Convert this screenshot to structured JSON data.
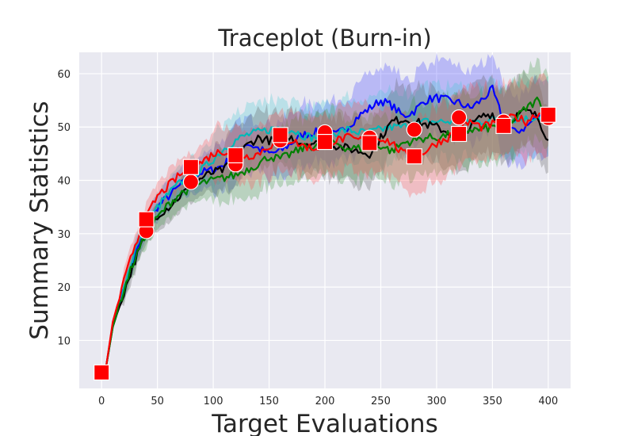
{
  "chart_data": {
    "type": "line",
    "title": "Traceplot (Burn-in)",
    "xlabel": "Target Evaluations",
    "ylabel": "Summary Statistics",
    "xlim": [
      -20,
      420
    ],
    "ylim": [
      1,
      64
    ],
    "xticks": [
      0,
      50,
      100,
      150,
      200,
      250,
      300,
      350,
      400
    ],
    "yticks": [
      10,
      20,
      30,
      40,
      50,
      60
    ],
    "grid": true,
    "background": "#e9e9f1",
    "series": [
      {
        "color": "#0000ff",
        "band_color": "#3c3cff",
        "points": [
          [
            4,
            5
          ],
          [
            10,
            13
          ],
          [
            20,
            20
          ],
          [
            30,
            26
          ],
          [
            40,
            31
          ],
          [
            50,
            35
          ],
          [
            60,
            37
          ],
          [
            70,
            39
          ],
          [
            80,
            40.5
          ],
          [
            90,
            41.5
          ],
          [
            100,
            42
          ],
          [
            110,
            43
          ],
          [
            120,
            45
          ],
          [
            130,
            47
          ],
          [
            140,
            46
          ],
          [
            150,
            45
          ],
          [
            160,
            45.5
          ],
          [
            170,
            47
          ],
          [
            180,
            48.5
          ],
          [
            190,
            49
          ],
          [
            200,
            49
          ],
          [
            210,
            48.5
          ],
          [
            220,
            50
          ],
          [
            230,
            52
          ],
          [
            240,
            53.5
          ],
          [
            250,
            55
          ],
          [
            260,
            54
          ],
          [
            270,
            52
          ],
          [
            280,
            53
          ],
          [
            290,
            55
          ],
          [
            300,
            55.5
          ],
          [
            310,
            55
          ],
          [
            320,
            54.5
          ],
          [
            330,
            53.5
          ],
          [
            340,
            55
          ],
          [
            350,
            57
          ],
          [
            360,
            51
          ],
          [
            370,
            49
          ],
          [
            380,
            50
          ],
          [
            390,
            52
          ],
          [
            400,
            51.5
          ]
        ]
      },
      {
        "color": "#00b8b8",
        "band_color": "#40c8d0",
        "points": [
          [
            4,
            5
          ],
          [
            10,
            13
          ],
          [
            20,
            20
          ],
          [
            30,
            27
          ],
          [
            40,
            31.5
          ],
          [
            50,
            35
          ],
          [
            60,
            37.5
          ],
          [
            70,
            39.5
          ],
          [
            80,
            41
          ],
          [
            90,
            42
          ],
          [
            100,
            44
          ],
          [
            110,
            46
          ],
          [
            120,
            47.5
          ],
          [
            130,
            48.5
          ],
          [
            140,
            49
          ],
          [
            150,
            49.5
          ],
          [
            160,
            50
          ],
          [
            170,
            49.5
          ],
          [
            180,
            48.5
          ],
          [
            190,
            48
          ],
          [
            200,
            48.5
          ],
          [
            210,
            49
          ],
          [
            220,
            49.5
          ],
          [
            230,
            49
          ],
          [
            240,
            49
          ],
          [
            250,
            49.5
          ],
          [
            260,
            50
          ],
          [
            270,
            50
          ],
          [
            280,
            50.5
          ],
          [
            290,
            51
          ],
          [
            300,
            51
          ],
          [
            310,
            51
          ],
          [
            320,
            51
          ],
          [
            330,
            51
          ],
          [
            340,
            51
          ],
          [
            350,
            51.5
          ],
          [
            360,
            51.5
          ],
          [
            370,
            51.5
          ],
          [
            380,
            51.5
          ],
          [
            390,
            52
          ],
          [
            400,
            52
          ]
        ]
      },
      {
        "color": "#000000",
        "band_color": "#555555",
        "points": [
          [
            4,
            5
          ],
          [
            10,
            12.5
          ],
          [
            20,
            19
          ],
          [
            30,
            25
          ],
          [
            40,
            30
          ],
          [
            50,
            33.5
          ],
          [
            60,
            35
          ],
          [
            70,
            37
          ],
          [
            80,
            39
          ],
          [
            90,
            40.5
          ],
          [
            100,
            41.5
          ],
          [
            110,
            42
          ],
          [
            120,
            44.5
          ],
          [
            130,
            46.5
          ],
          [
            140,
            48
          ],
          [
            150,
            47.5
          ],
          [
            160,
            47
          ],
          [
            170,
            48
          ],
          [
            180,
            47
          ],
          [
            190,
            47
          ],
          [
            200,
            46.5
          ],
          [
            210,
            46.5
          ],
          [
            220,
            46
          ],
          [
            230,
            45.5
          ],
          [
            240,
            45
          ],
          [
            250,
            48
          ],
          [
            260,
            51
          ],
          [
            270,
            51.5
          ],
          [
            280,
            51
          ],
          [
            290,
            50.5
          ],
          [
            300,
            50
          ],
          [
            310,
            49
          ],
          [
            320,
            48.5
          ],
          [
            330,
            50
          ],
          [
            340,
            52
          ],
          [
            350,
            52.5
          ],
          [
            360,
            50
          ],
          [
            370,
            52
          ],
          [
            380,
            53
          ],
          [
            390,
            52
          ],
          [
            400,
            47.5
          ]
        ]
      },
      {
        "color": "#008000",
        "band_color": "#3c963c",
        "points": [
          [
            4,
            5
          ],
          [
            10,
            12.5
          ],
          [
            20,
            19.5
          ],
          [
            30,
            25.5
          ],
          [
            40,
            30
          ],
          [
            50,
            33
          ],
          [
            60,
            35.5
          ],
          [
            70,
            37.5
          ],
          [
            80,
            38.5
          ],
          [
            90,
            39.5
          ],
          [
            100,
            40
          ],
          [
            110,
            40.5
          ],
          [
            120,
            41
          ],
          [
            130,
            42
          ],
          [
            140,
            43
          ],
          [
            150,
            44.5
          ],
          [
            160,
            44
          ],
          [
            170,
            45
          ],
          [
            180,
            46
          ],
          [
            190,
            46.5
          ],
          [
            200,
            47
          ],
          [
            210,
            47
          ],
          [
            220,
            46
          ],
          [
            230,
            46
          ],
          [
            240,
            46.5
          ],
          [
            250,
            46.5
          ],
          [
            260,
            45.5
          ],
          [
            270,
            47
          ],
          [
            280,
            47.5
          ],
          [
            290,
            48
          ],
          [
            300,
            48
          ],
          [
            310,
            48.5
          ],
          [
            320,
            49
          ],
          [
            330,
            49.5
          ],
          [
            340,
            49.5
          ],
          [
            350,
            50
          ],
          [
            360,
            50.5
          ],
          [
            370,
            51.5
          ],
          [
            380,
            53.5
          ],
          [
            390,
            55
          ],
          [
            400,
            53
          ]
        ]
      },
      {
        "color": "#ff0000",
        "band_color": "#ff4a4a",
        "points": [
          [
            4,
            5
          ],
          [
            10,
            13.5
          ],
          [
            20,
            21
          ],
          [
            30,
            28
          ],
          [
            40,
            33
          ],
          [
            50,
            37
          ],
          [
            60,
            39
          ],
          [
            70,
            41
          ],
          [
            80,
            42
          ],
          [
            90,
            43.5
          ],
          [
            100,
            45
          ],
          [
            110,
            45.5
          ],
          [
            120,
            45
          ],
          [
            130,
            44.5
          ],
          [
            140,
            45
          ],
          [
            150,
            46.5
          ],
          [
            160,
            47
          ],
          [
            170,
            47.5
          ],
          [
            180,
            46.5
          ],
          [
            190,
            46
          ],
          [
            200,
            46.5
          ],
          [
            210,
            47.5
          ],
          [
            220,
            48
          ],
          [
            230,
            47.5
          ],
          [
            240,
            48
          ],
          [
            250,
            48
          ],
          [
            260,
            47
          ],
          [
            270,
            45
          ],
          [
            280,
            44.5
          ],
          [
            290,
            45.5
          ],
          [
            300,
            47
          ],
          [
            310,
            48
          ],
          [
            320,
            49.5
          ],
          [
            330,
            51
          ],
          [
            340,
            50
          ],
          [
            350,
            50.5
          ],
          [
            360,
            51
          ],
          [
            370,
            52
          ],
          [
            380,
            51
          ],
          [
            390,
            52.5
          ],
          [
            400,
            52.5
          ]
        ]
      }
    ],
    "circle_markers": {
      "color": "#ff0000",
      "points": [
        [
          0,
          4
        ],
        [
          40,
          30.5
        ],
        [
          80,
          39.7
        ],
        [
          120,
          43
        ],
        [
          160,
          47.5
        ],
        [
          200,
          49
        ],
        [
          240,
          48
        ],
        [
          280,
          49.5
        ],
        [
          320,
          51.8
        ],
        [
          360,
          51
        ],
        [
          400,
          51.7
        ]
      ]
    },
    "square_markers": {
      "color": "#ff0000",
      "points": [
        [
          0,
          4
        ],
        [
          40,
          32.7
        ],
        [
          80,
          42.5
        ],
        [
          120,
          44.7
        ],
        [
          160,
          48.5
        ],
        [
          200,
          47.2
        ],
        [
          240,
          47
        ],
        [
          280,
          44.5
        ],
        [
          320,
          48.7
        ],
        [
          360,
          50.2
        ],
        [
          400,
          52.3
        ]
      ]
    }
  }
}
